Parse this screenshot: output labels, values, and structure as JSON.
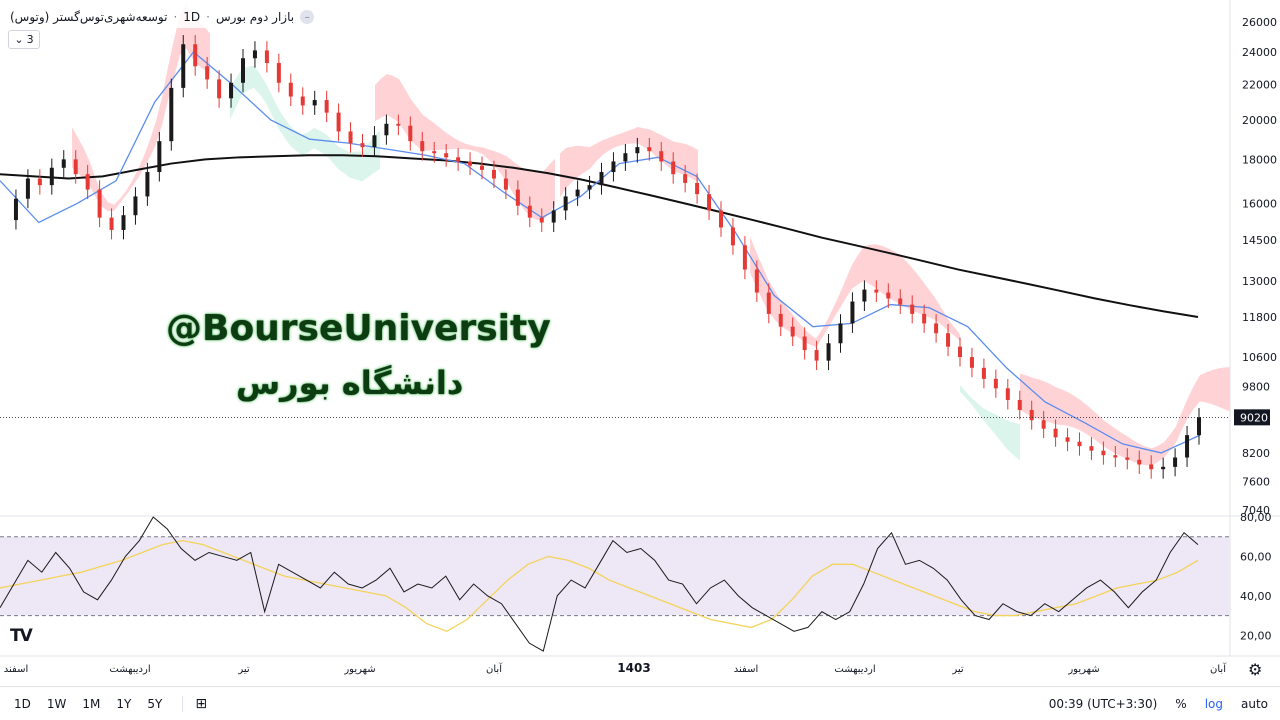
{
  "header": {
    "symbol_name": "توسعه‌شهری‌توس‌گستر (وتوس)",
    "interval": "1D",
    "market": "بازار دوم بورس",
    "separator": "·",
    "collapse_icon": "chevron-up-icon"
  },
  "indicator_toggle": {
    "label": "3",
    "icon": "chevron-down-icon"
  },
  "watermark": {
    "line1": "@BourseUniversity",
    "line2": "دانشگاه بورس"
  },
  "logo_text": "TV",
  "colors": {
    "up": "#1a1a1a",
    "down": "#e53935",
    "ma": "#111111",
    "kijun": "#5b8def",
    "cloud_bear": "#ffcdd2",
    "cloud_bull": "#d7f3ea",
    "rsi": "#1a1a1a",
    "rsi_ma": "#f5d35a",
    "rsi_band": "#ede7f6"
  },
  "bottom_bar": {
    "timeframes": [
      "1D",
      "1W",
      "1M",
      "1Y",
      "5Y"
    ],
    "time": "00:39 (UTC+3:30)",
    "percent": "%",
    "log": "log",
    "auto": "auto",
    "settings_icon": "gear-icon",
    "calendar_icon": "calendar-range-icon"
  },
  "chart_data": [
    {
      "type": "candlestick",
      "title": "توسعه‌شهری‌توس‌گستر (وتوس) · 1D · بازار دوم بورس",
      "scale": "log",
      "y_ticks": [
        26000,
        24000,
        22000,
        20000,
        18000,
        16000,
        14500,
        13000,
        11800,
        10600,
        9800,
        9020,
        8200,
        7600,
        7040
      ],
      "last_price": 9020,
      "x_labels": [
        "اسفند",
        "اردیبهشت",
        "تیر",
        "شهریور",
        "آبان",
        "1403",
        "اسفند",
        "اردیبهشت",
        "تیر",
        "شهریور",
        "آبان"
      ],
      "close": [
        15300,
        16200,
        17100,
        16800,
        17600,
        18000,
        17300,
        16600,
        15400,
        14900,
        15500,
        16300,
        17400,
        18900,
        21800,
        24500,
        23100,
        22300,
        21200,
        22100,
        23600,
        24100,
        23300,
        22100,
        21300,
        20800,
        21100,
        20400,
        19400,
        18800,
        18600,
        19200,
        19800,
        19700,
        18900,
        18400,
        18300,
        18100,
        17900,
        17700,
        17500,
        17100,
        16600,
        15900,
        15400,
        15200,
        15700,
        16300,
        16600,
        16800,
        17400,
        17900,
        18300,
        18600,
        18400,
        17900,
        17300,
        16900,
        16400,
        15700,
        15000,
        14300,
        13400,
        12600,
        11900,
        11500,
        11200,
        10800,
        10500,
        11000,
        11600,
        12300,
        12700,
        12600,
        12400,
        12200,
        11900,
        11600,
        11300,
        10900,
        10600,
        10300,
        10000,
        9750,
        9450,
        9200,
        8950,
        8750,
        8550,
        8450,
        8350,
        8250,
        8150,
        8100,
        8050,
        7950,
        7850,
        7900,
        8100,
        8600,
        9020
      ],
      "ma200": [
        17300,
        17200,
        17100,
        17200,
        17500,
        17800,
        18000,
        18100,
        18150,
        18200,
        18200,
        18150,
        18050,
        17950,
        17800,
        17600,
        17350,
        17050,
        16700,
        16350,
        16000,
        15650,
        15300,
        14950,
        14600,
        14300,
        14000,
        13700,
        13400,
        13150,
        12900,
        12650,
        12400,
        12180,
        11980,
        11800
      ],
      "kijun": [
        17000,
        15200,
        16000,
        17000,
        21000,
        24000,
        22000,
        20000,
        19000,
        18800,
        18500,
        18200,
        17800,
        16500,
        15400,
        16300,
        17800,
        18100,
        17200,
        14800,
        12500,
        11500,
        11600,
        12200,
        12100,
        11500,
        10300,
        9400,
        8900,
        8400,
        8200,
        8600
      ],
      "ichimoku_cloud": [
        {
          "bias": "bearish",
          "from": 72,
          "to": 210
        },
        {
          "bias": "bullish",
          "from": 230,
          "to": 380
        },
        {
          "bias": "bearish",
          "from": 375,
          "to": 560
        },
        {
          "bias": "bearish",
          "from": 560,
          "to": 700
        },
        {
          "bias": "bearish",
          "from": 750,
          "to": 960
        },
        {
          "bias": "bullish",
          "from": 960,
          "to": 1020
        },
        {
          "bias": "bearish",
          "from": 1020,
          "to": 1235
        }
      ]
    },
    {
      "type": "line",
      "title": "RSI",
      "y_ticks": [
        "80,00",
        "60,00",
        "40,00",
        "20,00"
      ],
      "bands": [
        30,
        70
      ],
      "ylim": [
        10,
        80
      ],
      "rsi": [
        34,
        46,
        58,
        52,
        62,
        54,
        42,
        38,
        48,
        60,
        68,
        80,
        74,
        64,
        58,
        62,
        60,
        58,
        62,
        32,
        56,
        52,
        48,
        44,
        52,
        46,
        44,
        48,
        54,
        42,
        46,
        44,
        50,
        38,
        46,
        40,
        36,
        26,
        16,
        12,
        40,
        48,
        44,
        56,
        68,
        62,
        64,
        58,
        48,
        46,
        36,
        44,
        48,
        40,
        34,
        30,
        26,
        22,
        24,
        32,
        28,
        32,
        46,
        64,
        72,
        56,
        58,
        54,
        48,
        38,
        30,
        28,
        36,
        32,
        30,
        36,
        32,
        38,
        44,
        48,
        42,
        34,
        42,
        48,
        62,
        72,
        66
      ],
      "rsi_ma": [
        44,
        46,
        48,
        50,
        52,
        55,
        58,
        62,
        66,
        68,
        66,
        62,
        58,
        54,
        50,
        48,
        46,
        44,
        42,
        40,
        34,
        26,
        22,
        28,
        38,
        48,
        56,
        60,
        58,
        54,
        48,
        44,
        40,
        36,
        32,
        28,
        26,
        24,
        28,
        38,
        50,
        56,
        56,
        52,
        48,
        44,
        40,
        36,
        32,
        30,
        30,
        32,
        34,
        36,
        40,
        44,
        46,
        48,
        52,
        58
      ]
    }
  ]
}
